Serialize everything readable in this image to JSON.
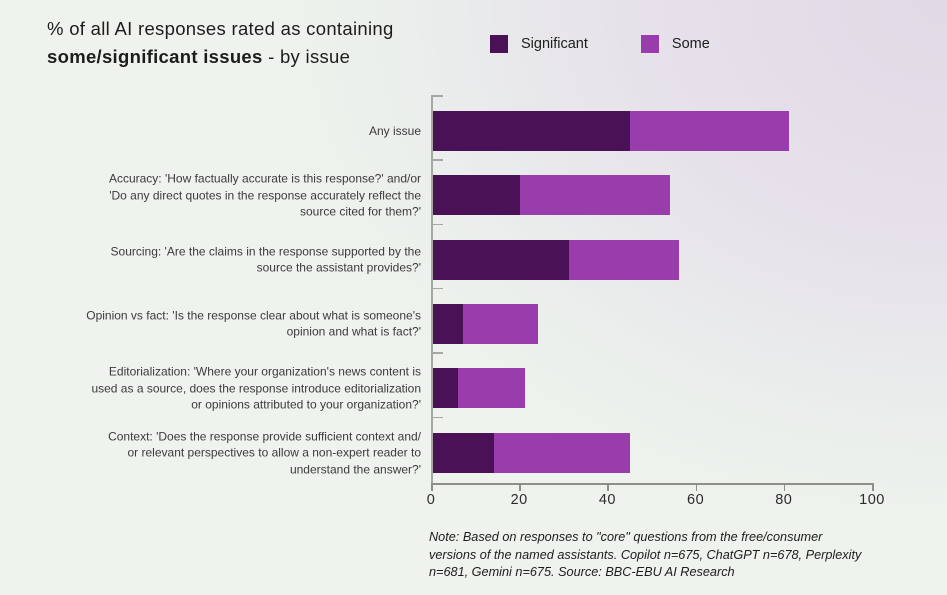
{
  "page": {
    "background_left": "#eef3ed",
    "background_top_right": "#e0dae6"
  },
  "title": {
    "line1": "% of all AI responses rated as containing",
    "line2_bold": "some/significant issues",
    "line2_rest": " - by issue"
  },
  "note": {
    "lines": [
      "Note: Based on responses to \"core\" questions from the free/consumer",
      "versions of the named assistants. Copilot n=675, ChatGPT n=678, Perplexity",
      "n=681, Gemini n=675. Source: BBC-EBU AI Research"
    ]
  },
  "chart_data": {
    "type": "bar",
    "orientation": "horizontal",
    "stacked": true,
    "xlim": [
      0,
      100
    ],
    "xticks": [
      0,
      20,
      40,
      60,
      80,
      100
    ],
    "grid": false,
    "legend_position": "top",
    "series": [
      {
        "name": "Significant",
        "color": "#4b1156",
        "values": [
          45,
          20,
          31,
          7,
          6,
          14
        ]
      },
      {
        "name": "Some",
        "color": "#9a3dac",
        "values": [
          36,
          34,
          25,
          17,
          15,
          31
        ]
      }
    ],
    "totals": [
      81,
      54,
      56,
      24,
      21,
      45
    ],
    "categories": [
      {
        "label_lines": [
          "Any issue"
        ]
      },
      {
        "label_lines": [
          "Accuracy: 'How factually accurate is this response?' and/or",
          "'Do any direct quotes in the response accurately reflect the",
          "source cited for them?'"
        ]
      },
      {
        "label_lines": [
          "Sourcing: 'Are the claims in the response supported by the",
          "source the assistant provides?'"
        ]
      },
      {
        "label_lines": [
          "Opinion vs fact: 'Is the response clear about what is someone's",
          "opinion and what is fact?'"
        ]
      },
      {
        "label_lines": [
          "Editorialization: 'Where your organization's news content is",
          "used as a source, does the response introduce editorialization",
          "or opinions attributed to your organization?'"
        ]
      },
      {
        "label_lines": [
          "Context: 'Does the response provide sufficient context and/",
          "or relevant perspectives to allow a non-expert reader to",
          "understand the answer?'"
        ]
      }
    ]
  }
}
